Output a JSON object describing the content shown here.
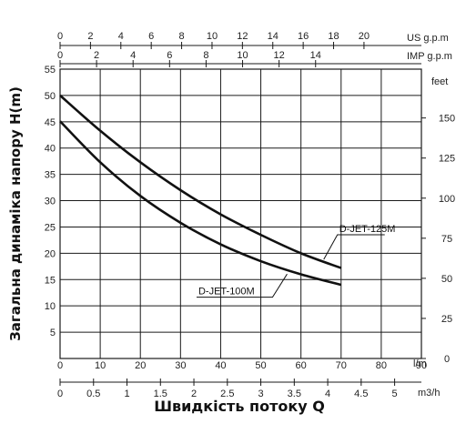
{
  "chart_data": {
    "type": "line",
    "ylabel": "Загальна динаміка напору H(m)",
    "xlabel": "Швидкість потоку Q",
    "x_unit": "l/m",
    "y_unit": "m",
    "xlim": [
      0,
      90
    ],
    "ylim": [
      0,
      55
    ],
    "grid": true,
    "x_ticks": [
      "0",
      "10",
      "20",
      "30",
      "40",
      "50",
      "60",
      "70",
      "80",
      "90"
    ],
    "y_ticks": [
      "5",
      "10",
      "15",
      "20",
      "25",
      "30",
      "35",
      "40",
      "45",
      "50",
      "55"
    ],
    "secondary_axes": {
      "us_gpm": {
        "unit": "US g.p.m",
        "ticks": [
          "0",
          "2",
          "4",
          "6",
          "8",
          "10",
          "12",
          "14",
          "16",
          "18",
          "20"
        ],
        "lpm_per_unit": 3.785
      },
      "imp_gpm": {
        "unit": "IMP g.p.m",
        "ticks": [
          "0",
          "2",
          "4",
          "6",
          "8",
          "10",
          "12",
          "14"
        ],
        "lpm_per_unit": 4.546
      },
      "m3h": {
        "unit": "m3/h",
        "ticks": [
          "0",
          "0.5",
          "1",
          "1.5",
          "2",
          "2.5",
          "3",
          "3.5",
          "4",
          "4.5",
          "5"
        ],
        "lpm_per_unit": 16.6667
      },
      "feet": {
        "unit": "feet",
        "ticks": [
          "0",
          "25",
          "50",
          "75",
          "100",
          "125",
          "150"
        ],
        "m_per_unit": 0.3048
      }
    },
    "series": [
      {
        "name": "D-JET-125M",
        "x": [
          0,
          10,
          20,
          30,
          40,
          50,
          60,
          70
        ],
        "y": [
          50,
          43.3,
          37.3,
          32,
          27.4,
          23.5,
          20,
          17.2
        ]
      },
      {
        "name": "D-JET-100M",
        "x": [
          0,
          10,
          20,
          30,
          40,
          50,
          60,
          70
        ],
        "y": [
          45.1,
          37.3,
          30.9,
          25.8,
          21.7,
          18.5,
          16,
          14
        ]
      }
    ]
  }
}
